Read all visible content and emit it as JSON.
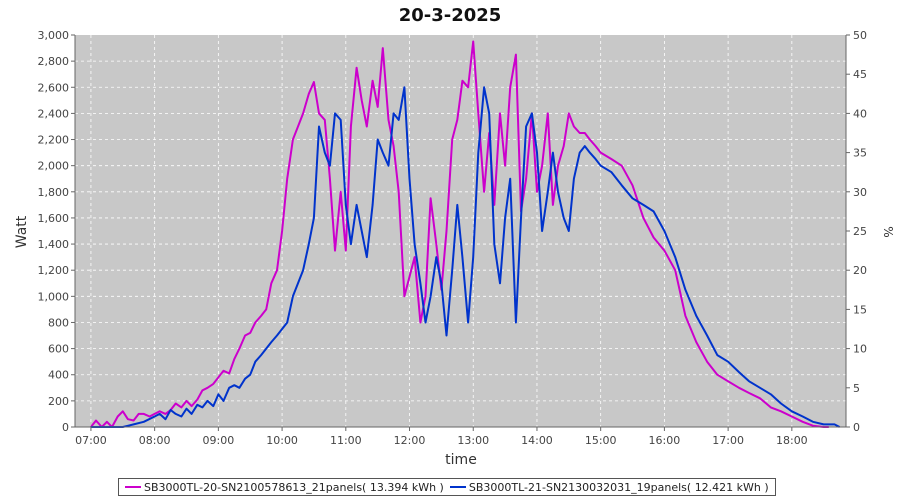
{
  "chart_data": {
    "type": "line",
    "title": "20-3-2025",
    "xlabel": "time",
    "ylabel": "Watt",
    "y2label": "%",
    "xlim": [
      6.75,
      18.85
    ],
    "ylim": [
      0,
      3000
    ],
    "y2lim": [
      0,
      50
    ],
    "x_ticks": [
      7,
      8,
      9,
      10,
      11,
      12,
      13,
      14,
      15,
      16,
      17,
      18
    ],
    "x_tick_labels": [
      "07:00",
      "08:00",
      "09:00",
      "10:00",
      "11:00",
      "12:00",
      "13:00",
      "14:00",
      "15:00",
      "16:00",
      "17:00",
      "18:00"
    ],
    "y_ticks": [
      0,
      200,
      400,
      600,
      800,
      1000,
      1200,
      1400,
      1600,
      1800,
      2000,
      2200,
      2400,
      2600,
      2800,
      3000
    ],
    "y_tick_labels": [
      "0",
      "200",
      "400",
      "600",
      "800",
      "1,000",
      "1,200",
      "1,400",
      "1,600",
      "1,800",
      "2,000",
      "2,200",
      "2,400",
      "2,600",
      "2,800",
      "3,000"
    ],
    "y2_ticks": [
      0,
      5,
      10,
      15,
      20,
      25,
      30,
      35,
      40,
      45,
      50
    ],
    "y2_tick_labels": [
      "0",
      "5",
      "10",
      "15",
      "20",
      "25",
      "30",
      "35",
      "40",
      "45",
      "50"
    ],
    "grid": true,
    "legend_position": "bottom",
    "background_color": "#c8c8c8",
    "grid_color": "#ffffff",
    "series": [
      {
        "name": "SB3000TL-20-SN2100578613_21panels( 13.394 kWh )",
        "color": "#cc00cc",
        "x": [
          7.0,
          7.08,
          7.17,
          7.25,
          7.33,
          7.42,
          7.5,
          7.58,
          7.67,
          7.75,
          7.83,
          7.92,
          8.0,
          8.08,
          8.17,
          8.25,
          8.33,
          8.42,
          8.5,
          8.58,
          8.67,
          8.75,
          8.83,
          8.92,
          9.0,
          9.08,
          9.17,
          9.25,
          9.33,
          9.42,
          9.5,
          9.58,
          9.67,
          9.75,
          9.83,
          9.92,
          10.0,
          10.08,
          10.17,
          10.25,
          10.33,
          10.42,
          10.5,
          10.58,
          10.67,
          10.75,
          10.83,
          10.92,
          11.0,
          11.08,
          11.17,
          11.25,
          11.33,
          11.42,
          11.5,
          11.58,
          11.67,
          11.75,
          11.83,
          11.92,
          12.0,
          12.08,
          12.17,
          12.25,
          12.33,
          12.42,
          12.5,
          12.58,
          12.67,
          12.75,
          12.83,
          12.92,
          13.0,
          13.08,
          13.17,
          13.25,
          13.33,
          13.42,
          13.5,
          13.58,
          13.67,
          13.75,
          13.83,
          13.92,
          14.0,
          14.08,
          14.17,
          14.25,
          14.33,
          14.42,
          14.5,
          14.58,
          14.67,
          14.75,
          14.83,
          14.92,
          15.0,
          15.17,
          15.33,
          15.5,
          15.67,
          15.83,
          16.0,
          16.17,
          16.33,
          16.5,
          16.67,
          16.83,
          17.0,
          17.17,
          17.33,
          17.5,
          17.67,
          17.83,
          18.0,
          18.17,
          18.33,
          18.5,
          18.58
        ],
        "y": [
          0,
          50,
          0,
          40,
          0,
          80,
          120,
          60,
          50,
          100,
          100,
          80,
          100,
          120,
          100,
          130,
          180,
          150,
          200,
          160,
          210,
          280,
          300,
          330,
          380,
          430,
          410,
          520,
          600,
          700,
          720,
          800,
          850,
          900,
          1100,
          1200,
          1500,
          1900,
          2200,
          2300,
          2400,
          2550,
          2640,
          2400,
          2350,
          1900,
          1350,
          1800,
          1350,
          2300,
          2750,
          2500,
          2300,
          2650,
          2450,
          2900,
          2350,
          2150,
          1800,
          1000,
          1150,
          1300,
          800,
          1000,
          1750,
          1400,
          1050,
          1500,
          2200,
          2350,
          2650,
          2600,
          2950,
          2400,
          1800,
          2250,
          1700,
          2400,
          2000,
          2600,
          2850,
          1650,
          1900,
          2400,
          1800,
          2000,
          2400,
          1700,
          2000,
          2150,
          2400,
          2300,
          2250,
          2250,
          2200,
          2150,
          2100,
          2050,
          2000,
          1850,
          1600,
          1450,
          1350,
          1200,
          850,
          650,
          500,
          400,
          350,
          300,
          260,
          220,
          150,
          120,
          80,
          40,
          10,
          0,
          0
        ]
      },
      {
        "name": "SB3000TL-21-SN2130032031_19panels( 12.421 kWh )",
        "color": "#0033cc",
        "x": [
          7.0,
          7.17,
          7.33,
          7.5,
          7.67,
          7.83,
          8.0,
          8.08,
          8.17,
          8.25,
          8.33,
          8.42,
          8.5,
          8.58,
          8.67,
          8.75,
          8.83,
          8.92,
          9.0,
          9.08,
          9.17,
          9.25,
          9.33,
          9.42,
          9.5,
          9.58,
          9.67,
          9.75,
          9.83,
          9.92,
          10.0,
          10.08,
          10.17,
          10.25,
          10.33,
          10.42,
          10.5,
          10.58,
          10.67,
          10.75,
          10.83,
          10.92,
          11.0,
          11.08,
          11.17,
          11.25,
          11.33,
          11.42,
          11.5,
          11.58,
          11.67,
          11.75,
          11.83,
          11.92,
          12.0,
          12.08,
          12.17,
          12.25,
          12.33,
          12.42,
          12.5,
          12.58,
          12.67,
          12.75,
          12.83,
          12.92,
          13.0,
          13.08,
          13.17,
          13.25,
          13.33,
          13.42,
          13.5,
          13.58,
          13.67,
          13.75,
          13.83,
          13.92,
          14.0,
          14.08,
          14.17,
          14.25,
          14.33,
          14.42,
          14.5,
          14.58,
          14.67,
          14.75,
          14.83,
          14.92,
          15.0,
          15.17,
          15.33,
          15.5,
          15.67,
          15.83,
          16.0,
          16.17,
          16.33,
          16.5,
          16.67,
          16.83,
          17.0,
          17.17,
          17.33,
          17.5,
          17.67,
          17.83,
          18.0,
          18.17,
          18.33,
          18.5,
          18.67,
          18.75
        ],
        "y": [
          0,
          0,
          0,
          0,
          20,
          40,
          80,
          100,
          60,
          130,
          100,
          80,
          140,
          100,
          170,
          150,
          200,
          160,
          250,
          200,
          300,
          320,
          300,
          370,
          400,
          500,
          550,
          600,
          650,
          700,
          750,
          800,
          1000,
          1100,
          1200,
          1400,
          1600,
          2300,
          2100,
          2000,
          2400,
          2350,
          1700,
          1400,
          1700,
          1500,
          1300,
          1700,
          2200,
          2100,
          2000,
          2400,
          2350,
          2600,
          1900,
          1400,
          1100,
          800,
          1000,
          1300,
          1100,
          700,
          1200,
          1700,
          1300,
          800,
          1300,
          2100,
          2600,
          2400,
          1400,
          1100,
          1600,
          1900,
          800,
          1600,
          2300,
          2400,
          2100,
          1500,
          1800,
          2100,
          1800,
          1600,
          1500,
          1900,
          2100,
          2150,
          2100,
          2050,
          2000,
          1950,
          1850,
          1750,
          1700,
          1650,
          1500,
          1300,
          1050,
          850,
          700,
          550,
          500,
          420,
          350,
          300,
          250,
          180,
          120,
          80,
          40,
          20,
          20,
          0
        ]
      }
    ]
  }
}
